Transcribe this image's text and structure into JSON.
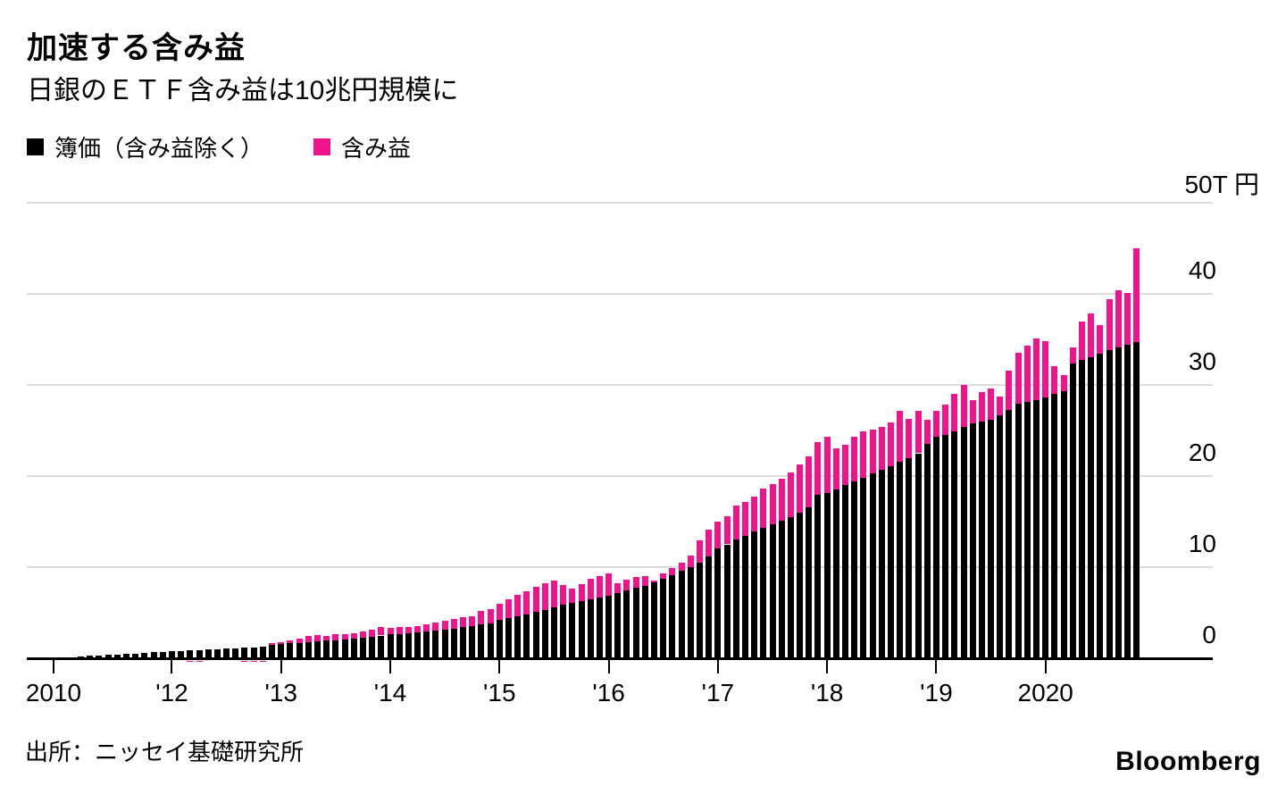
{
  "header": {
    "title": "加速する含み益",
    "subtitle": "日銀のＥＴＦ含み益は10兆円規模に"
  },
  "legend": {
    "items": [
      {
        "label": "簿価（含み益除く）",
        "color": "#000000"
      },
      {
        "label": "含み益",
        "color": "#f0148c"
      }
    ]
  },
  "footer": {
    "source": "出所：ニッセイ基礎研究所",
    "logo": "Bloomberg"
  },
  "chart_data": {
    "type": "bar",
    "stacked": true,
    "title": "加速する含み益",
    "subtitle": "日銀のＥＴＦ含み益は10兆円規模に",
    "unit": "trillion yen (兆円)",
    "grid": true,
    "legend_position": "top-left",
    "ylim": [
      -0.6,
      50
    ],
    "yticks": [
      {
        "value": 0,
        "label": "0"
      },
      {
        "value": 10,
        "label": "10"
      },
      {
        "value": 20,
        "label": "20"
      },
      {
        "value": 30,
        "label": "30"
      },
      {
        "value": 40,
        "label": "40"
      },
      {
        "value": 50,
        "label": "50T 円"
      }
    ],
    "x_frequency": "monthly",
    "x_start": "2010-12",
    "x_end": "2020-11",
    "xticks": [
      {
        "index": 0,
        "label": "2010"
      },
      {
        "index": 13,
        "label": "'12"
      },
      {
        "index": 25,
        "label": "'13"
      },
      {
        "index": 37,
        "label": "'14"
      },
      {
        "index": 49,
        "label": "'15"
      },
      {
        "index": 61,
        "label": "'16"
      },
      {
        "index": 73,
        "label": "'17"
      },
      {
        "index": 85,
        "label": "'18"
      },
      {
        "index": 97,
        "label": "'19"
      },
      {
        "index": 109,
        "label": "2020"
      }
    ],
    "categories": [
      "2010-12",
      "2011-01",
      "2011-02",
      "2011-03",
      "2011-04",
      "2011-05",
      "2011-06",
      "2011-07",
      "2011-08",
      "2011-09",
      "2011-10",
      "2011-11",
      "2011-12",
      "2012-01",
      "2012-02",
      "2012-03",
      "2012-04",
      "2012-05",
      "2012-06",
      "2012-07",
      "2012-08",
      "2012-09",
      "2012-10",
      "2012-11",
      "2012-12",
      "2013-01",
      "2013-02",
      "2013-03",
      "2013-04",
      "2013-05",
      "2013-06",
      "2013-07",
      "2013-08",
      "2013-09",
      "2013-10",
      "2013-11",
      "2013-12",
      "2014-01",
      "2014-02",
      "2014-03",
      "2014-04",
      "2014-05",
      "2014-06",
      "2014-07",
      "2014-08",
      "2014-09",
      "2014-10",
      "2014-11",
      "2014-12",
      "2015-01",
      "2015-02",
      "2015-03",
      "2015-04",
      "2015-05",
      "2015-06",
      "2015-07",
      "2015-08",
      "2015-09",
      "2015-10",
      "2015-11",
      "2015-12",
      "2016-01",
      "2016-02",
      "2016-03",
      "2016-04",
      "2016-05",
      "2016-06",
      "2016-07",
      "2016-08",
      "2016-09",
      "2016-10",
      "2016-11",
      "2016-12",
      "2017-01",
      "2017-02",
      "2017-03",
      "2017-04",
      "2017-05",
      "2017-06",
      "2017-07",
      "2017-08",
      "2017-09",
      "2017-10",
      "2017-11",
      "2017-12",
      "2018-01",
      "2018-02",
      "2018-03",
      "2018-04",
      "2018-05",
      "2018-06",
      "2018-07",
      "2018-08",
      "2018-09",
      "2018-10",
      "2018-11",
      "2018-12",
      "2019-01",
      "2019-02",
      "2019-03",
      "2019-04",
      "2019-05",
      "2019-06",
      "2019-07",
      "2019-08",
      "2019-09",
      "2019-10",
      "2019-11",
      "2019-12",
      "2020-01",
      "2020-02",
      "2020-03",
      "2020-04",
      "2020-05",
      "2020-06",
      "2020-07",
      "2020-08",
      "2020-09",
      "2020-10",
      "2020-11"
    ],
    "series": [
      {
        "name": "簿価（含み益除く）",
        "color": "#000000",
        "values": [
          0.02,
          0.07,
          0.12,
          0.2,
          0.28,
          0.33,
          0.38,
          0.42,
          0.47,
          0.53,
          0.59,
          0.66,
          0.73,
          0.78,
          0.82,
          0.86,
          0.9,
          0.95,
          1.0,
          1.05,
          1.1,
          1.15,
          1.22,
          1.3,
          1.45,
          1.55,
          1.62,
          1.68,
          1.78,
          1.85,
          1.92,
          2.0,
          2.06,
          2.14,
          2.22,
          2.32,
          2.5,
          2.6,
          2.68,
          2.76,
          2.85,
          2.94,
          3.03,
          3.13,
          3.24,
          3.4,
          3.55,
          3.7,
          3.85,
          4.2,
          4.4,
          4.65,
          4.85,
          5.05,
          5.3,
          5.55,
          5.85,
          6.05,
          6.25,
          6.45,
          6.65,
          6.9,
          7.2,
          7.45,
          7.7,
          7.9,
          8.3,
          8.7,
          9.1,
          9.6,
          10.0,
          10.5,
          11.2,
          12.1,
          12.5,
          13.0,
          13.4,
          13.9,
          14.3,
          14.7,
          15.1,
          15.5,
          16.0,
          16.6,
          17.9,
          18.1,
          18.5,
          19.0,
          19.4,
          19.8,
          20.3,
          20.7,
          21.1,
          21.6,
          22.0,
          22.5,
          23.5,
          24.3,
          24.5,
          24.9,
          25.4,
          25.8,
          26.0,
          26.2,
          26.7,
          27.3,
          27.9,
          28.1,
          28.3,
          28.6,
          29.0,
          29.3,
          32.4,
          32.7,
          33.0,
          33.4,
          33.8,
          34.1,
          34.4,
          34.7
        ]
      },
      {
        "name": "含み益",
        "color": "#f0148c",
        "values": [
          0.0,
          0.0,
          0.0,
          0.0,
          0.0,
          0.0,
          0.0,
          0.0,
          0.0,
          0.0,
          0.0,
          0.0,
          0.0,
          -0.02,
          -0.02,
          -0.04,
          -0.08,
          -0.02,
          -0.02,
          -0.02,
          -0.02,
          -0.06,
          -0.08,
          -0.05,
          0.17,
          0.25,
          0.33,
          0.47,
          0.67,
          0.7,
          0.53,
          0.65,
          0.54,
          0.61,
          0.68,
          0.83,
          0.9,
          0.75,
          0.72,
          0.69,
          0.7,
          0.81,
          0.92,
          1.02,
          1.06,
          1.15,
          1.1,
          1.45,
          1.55,
          1.8,
          2.1,
          2.35,
          2.55,
          2.75,
          2.9,
          2.95,
          2.15,
          1.55,
          1.85,
          2.25,
          2.35,
          2.4,
          1.0,
          1.15,
          1.2,
          1.1,
          0.25,
          0.6,
          0.8,
          0.9,
          1.3,
          2.4,
          2.9,
          2.9,
          3.1,
          3.8,
          3.8,
          3.8,
          4.3,
          4.4,
          4.6,
          4.9,
          5.3,
          5.6,
          5.8,
          6.2,
          4.5,
          4.4,
          4.9,
          5.1,
          4.8,
          4.7,
          4.8,
          5.6,
          4.3,
          4.7,
          2.7,
          2.9,
          3.3,
          4.1,
          4.6,
          2.5,
          3.2,
          3.4,
          2.0,
          4.3,
          5.6,
          6.2,
          6.8,
          6.2,
          3.1,
          1.8,
          1.7,
          4.3,
          4.8,
          3.2,
          5.6,
          6.3,
          5.7,
          10.3
        ]
      }
    ]
  }
}
